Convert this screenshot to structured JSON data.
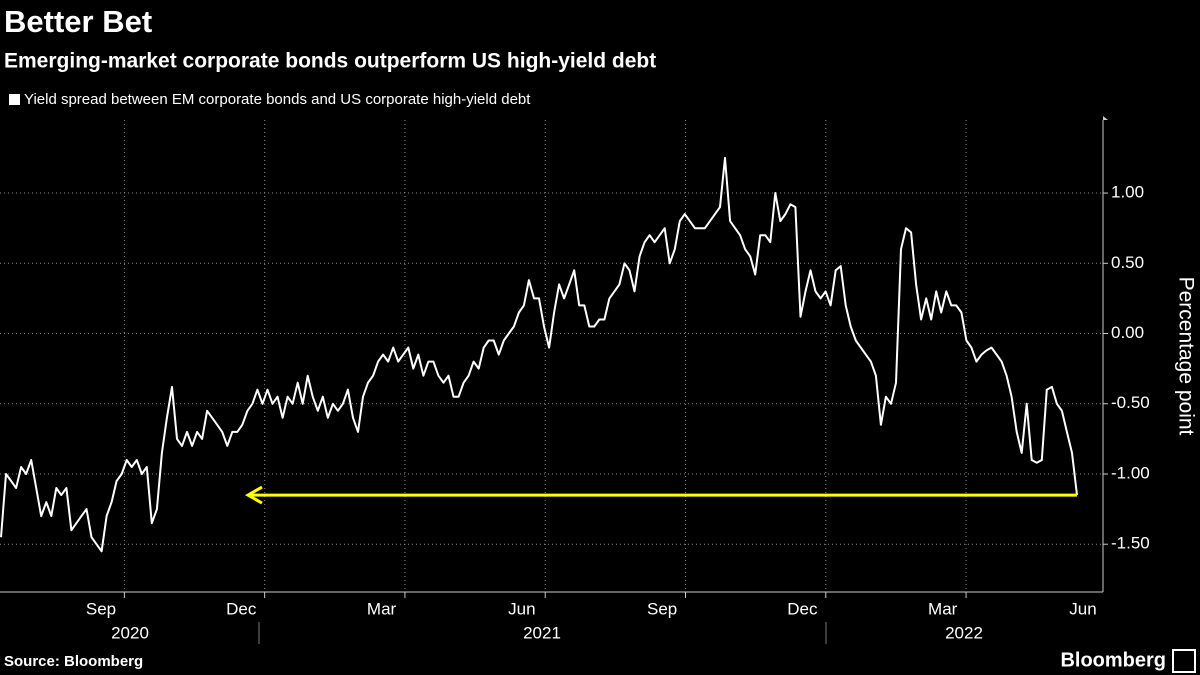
{
  "chart_data": {
    "type": "line",
    "title": "Better Bet",
    "subtitle": "Emerging-market corporate bonds outperform US high-yield debt",
    "legend": "Yield spread between EM corporate bonds and US corporate high-yield debt",
    "y_label": "Percentage point",
    "source": "Source: Bloomberg",
    "brand": "Bloomberg",
    "color": "#ffffff",
    "arrow_color": "#ffff00",
    "ylim": [
      -1.84,
      1.52
    ],
    "yticks": [
      {
        "value": 1,
        "label": "1.00"
      },
      {
        "value": 0.5,
        "label": "0.50"
      },
      {
        "value": 0,
        "label": "0.00"
      },
      {
        "value": -0.5,
        "label": "-0.50"
      },
      {
        "value": -1,
        "label": "-1.00"
      },
      {
        "value": -1.5,
        "label": "-1.50"
      }
    ],
    "xlim": [
      "2020-07",
      "2022-06"
    ],
    "xticks": [
      {
        "value": "2020-09",
        "label": "Sep"
      },
      {
        "value": "2020-12",
        "label": "Dec"
      },
      {
        "value": "2021-03",
        "label": "Mar"
      },
      {
        "value": "2021-06",
        "label": "Jun"
      },
      {
        "value": "2021-09",
        "label": "Sep"
      },
      {
        "value": "2021-12",
        "label": "Dec"
      },
      {
        "value": "2022-03",
        "label": "Mar"
      },
      {
        "value": "2022-06",
        "label": "Jun"
      }
    ],
    "years": [
      "2020",
      "2021",
      "2022"
    ],
    "grid": true,
    "values": [
      -1.45,
      -1.0,
      -1.05,
      -1.1,
      -0.95,
      -1.0,
      -0.9,
      -1.1,
      -1.3,
      -1.2,
      -1.3,
      -1.1,
      -1.15,
      -1.1,
      -1.4,
      -1.35,
      -1.3,
      -1.25,
      -1.45,
      -1.5,
      -1.55,
      -1.3,
      -1.2,
      -1.05,
      -1.0,
      -0.9,
      -0.95,
      -0.9,
      -1.0,
      -0.95,
      -1.35,
      -1.25,
      -0.85,
      -0.6,
      -0.38,
      -0.75,
      -0.8,
      -0.7,
      -0.8,
      -0.7,
      -0.75,
      -0.55,
      -0.6,
      -0.65,
      -0.7,
      -0.8,
      -0.7,
      -0.7,
      -0.65,
      -0.55,
      -0.5,
      -0.4,
      -0.5,
      -0.4,
      -0.5,
      -0.45,
      -0.6,
      -0.45,
      -0.5,
      -0.35,
      -0.5,
      -0.3,
      -0.45,
      -0.55,
      -0.45,
      -0.6,
      -0.5,
      -0.55,
      -0.5,
      -0.4,
      -0.6,
      -0.7,
      -0.45,
      -0.35,
      -0.3,
      -0.2,
      -0.15,
      -0.2,
      -0.1,
      -0.2,
      -0.15,
      -0.1,
      -0.25,
      -0.15,
      -0.3,
      -0.2,
      -0.2,
      -0.3,
      -0.35,
      -0.3,
      -0.45,
      -0.45,
      -0.35,
      -0.3,
      -0.2,
      -0.25,
      -0.1,
      -0.05,
      -0.05,
      -0.15,
      -0.05,
      0.0,
      0.05,
      0.15,
      0.2,
      0.38,
      0.25,
      0.25,
      0.05,
      -0.1,
      0.15,
      0.35,
      0.25,
      0.35,
      0.45,
      0.2,
      0.2,
      0.05,
      0.05,
      0.1,
      0.1,
      0.25,
      0.3,
      0.35,
      0.5,
      0.45,
      0.3,
      0.55,
      0.65,
      0.7,
      0.65,
      0.7,
      0.75,
      0.5,
      0.6,
      0.8,
      0.85,
      0.8,
      0.75,
      0.75,
      0.75,
      0.8,
      0.85,
      0.9,
      1.25,
      0.8,
      0.75,
      0.7,
      0.6,
      0.55,
      0.42,
      0.7,
      0.7,
      0.65,
      1.0,
      0.8,
      0.85,
      0.92,
      0.9,
      0.12,
      0.3,
      0.45,
      0.3,
      0.25,
      0.3,
      0.2,
      0.45,
      0.48,
      0.2,
      0.05,
      -0.05,
      -0.1,
      -0.15,
      -0.2,
      -0.3,
      -0.65,
      -0.45,
      -0.5,
      -0.35,
      0.6,
      0.75,
      0.72,
      0.35,
      0.1,
      0.25,
      0.1,
      0.3,
      0.15,
      0.3,
      0.2,
      0.2,
      0.15,
      -0.05,
      -0.1,
      -0.2,
      -0.15,
      -0.12,
      -0.1,
      -0.15,
      -0.2,
      -0.3,
      -0.45,
      -0.7,
      -0.85,
      -0.5,
      -0.9,
      -0.92,
      -0.9,
      -0.4,
      -0.38,
      -0.5,
      -0.55,
      -0.7,
      -0.85,
      -1.15
    ]
  }
}
